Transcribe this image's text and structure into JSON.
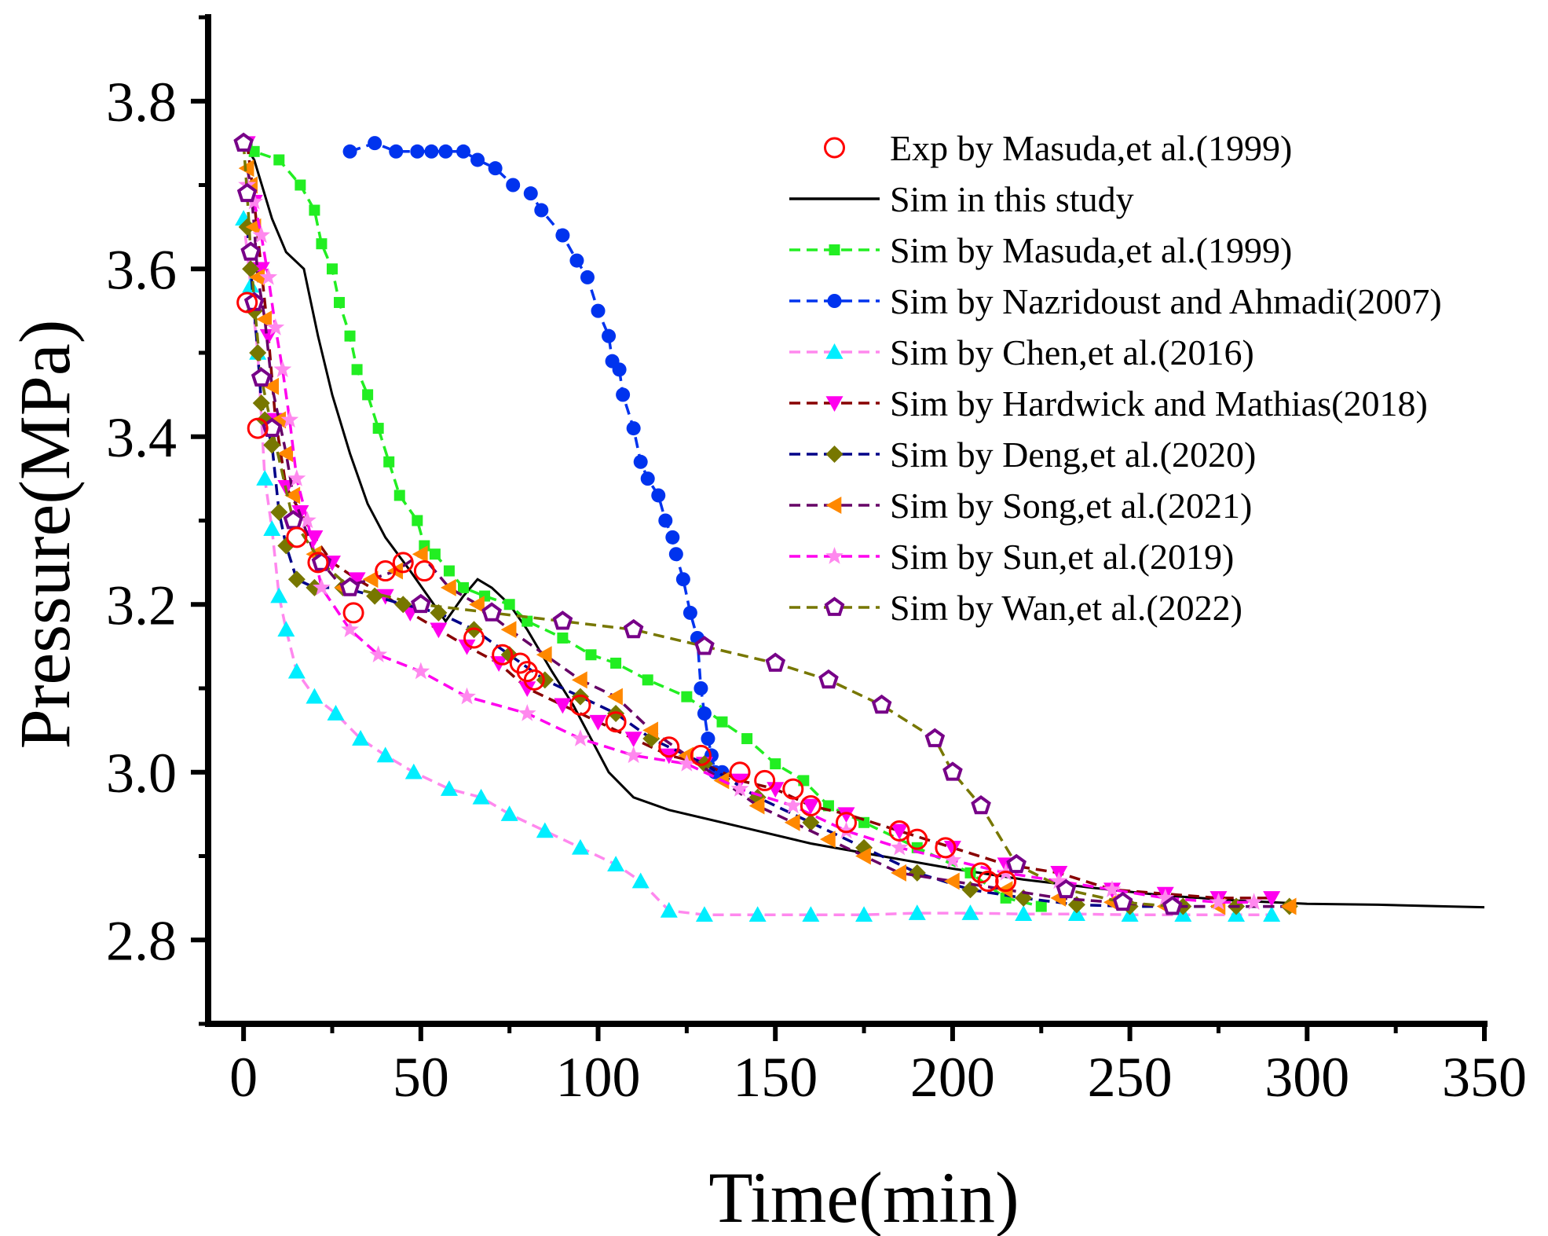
{
  "chart_data": {
    "type": "line",
    "xlabel": "Time(min)",
    "ylabel": "Pressure(MPa)",
    "xlim": [
      -10,
      350
    ],
    "ylim": [
      2.7,
      3.9
    ],
    "xticks": [
      0,
      50,
      100,
      150,
      200,
      250,
      300,
      350
    ],
    "xtick_labels": [
      "0",
      "50",
      "100",
      "150",
      "200",
      "250",
      "300",
      "350"
    ],
    "yticks": [
      2.8,
      3.0,
      3.2,
      3.4,
      3.6,
      3.8
    ],
    "ytick_labels": [
      "2.8",
      "3.0",
      "3.2",
      "3.4",
      "3.6",
      "3.8"
    ],
    "grid": false,
    "legend_position": "top-right",
    "series": [
      {
        "name": "Exp by Masuda,et al.(1999)",
        "color": "#ff0000",
        "line": "none",
        "marker": "circle-open",
        "x": [
          1,
          4,
          15,
          21,
          31,
          40,
          45,
          51,
          65,
          73,
          78,
          80,
          82,
          95,
          105,
          120,
          129,
          140,
          147,
          155,
          160,
          170,
          185,
          190,
          198,
          208,
          210,
          215
        ],
        "y": [
          3.56,
          3.41,
          3.28,
          3.25,
          3.19,
          3.24,
          3.25,
          3.24,
          3.16,
          3.14,
          3.13,
          3.12,
          3.11,
          3.08,
          3.06,
          3.03,
          3.02,
          3.0,
          2.99,
          2.98,
          2.96,
          2.94,
          2.93,
          2.92,
          2.91,
          2.88,
          2.87,
          2.87
        ]
      },
      {
        "name": "Sim in this study",
        "color": "#000000",
        "line": "solid",
        "marker": "none",
        "x": [
          0,
          3,
          8,
          12,
          17,
          21,
          25,
          30,
          35,
          40,
          47,
          52,
          57,
          62,
          66,
          70,
          75,
          80,
          87,
          93,
          98,
          103,
          110,
          120,
          140,
          160,
          180,
          200,
          220,
          240,
          260,
          280,
          300,
          320,
          340,
          350
        ],
        "y": [
          3.75,
          3.73,
          3.66,
          3.62,
          3.6,
          3.52,
          3.45,
          3.38,
          3.32,
          3.28,
          3.24,
          3.21,
          3.18,
          3.21,
          3.23,
          3.22,
          3.2,
          3.17,
          3.12,
          3.08,
          3.04,
          3.0,
          2.97,
          2.955,
          2.935,
          2.915,
          2.9,
          2.885,
          2.872,
          2.862,
          2.853,
          2.847,
          2.843,
          2.842,
          2.84,
          2.839
        ]
      },
      {
        "name": "Sim by Masuda,et al.(1999)",
        "color": "#22ee22",
        "line": "dash",
        "marker": "square",
        "x": [
          1,
          3,
          10,
          16,
          20,
          22,
          25,
          27,
          30,
          32,
          35,
          38,
          41,
          44,
          49,
          51,
          54,
          58,
          62,
          68,
          75,
          80,
          90,
          98,
          105,
          114,
          125,
          135,
          142,
          150,
          158,
          165,
          175,
          190,
          205,
          215,
          225
        ],
        "y": [
          3.75,
          3.74,
          3.73,
          3.7,
          3.67,
          3.63,
          3.6,
          3.56,
          3.52,
          3.48,
          3.45,
          3.41,
          3.37,
          3.33,
          3.3,
          3.27,
          3.26,
          3.24,
          3.22,
          3.21,
          3.2,
          3.18,
          3.16,
          3.14,
          3.13,
          3.11,
          3.09,
          3.06,
          3.04,
          3.01,
          2.99,
          2.96,
          2.94,
          2.91,
          2.88,
          2.85,
          2.84
        ]
      },
      {
        "name": "Sim by Nazridoust and Ahmadi(2007)",
        "color": "#0033ee",
        "line": "dash",
        "marker": "circle",
        "x": [
          30,
          37,
          43,
          49,
          53,
          57,
          62,
          66,
          71,
          76,
          81,
          84,
          90,
          94,
          97,
          100,
          103,
          104,
          106,
          107,
          110,
          112,
          114,
          117,
          119,
          121,
          122,
          124,
          126,
          128,
          129,
          130,
          131,
          132,
          133,
          135
        ],
        "y": [
          3.74,
          3.75,
          3.74,
          3.74,
          3.74,
          3.74,
          3.74,
          3.73,
          3.72,
          3.7,
          3.69,
          3.67,
          3.64,
          3.61,
          3.59,
          3.55,
          3.52,
          3.49,
          3.48,
          3.45,
          3.41,
          3.37,
          3.35,
          3.33,
          3.3,
          3.28,
          3.26,
          3.23,
          3.19,
          3.16,
          3.1,
          3.07,
          3.04,
          3.02,
          3.0,
          3.0
        ]
      },
      {
        "name": "Sim by Chen,et al.(2016)",
        "color": "#00eeff",
        "line": "dash",
        "line_color": "#ff88ee",
        "marker": "triangle-up",
        "x": [
          0,
          2,
          4,
          6,
          8,
          10,
          12,
          15,
          20,
          26,
          33,
          40,
          48,
          58,
          67,
          75,
          85,
          95,
          105,
          112,
          120,
          130,
          145,
          160,
          175,
          190,
          205,
          220,
          235,
          250,
          265,
          280,
          290
        ],
        "y": [
          3.66,
          3.58,
          3.5,
          3.35,
          3.29,
          3.21,
          3.17,
          3.12,
          3.09,
          3.07,
          3.04,
          3.02,
          3.0,
          2.98,
          2.97,
          2.95,
          2.93,
          2.91,
          2.89,
          2.87,
          2.835,
          2.83,
          2.83,
          2.83,
          2.83,
          2.832,
          2.832,
          2.831,
          2.831,
          2.83,
          2.83,
          2.83,
          2.83
        ]
      },
      {
        "name": "Sim by Hardwick and Mathias(2018)",
        "color": "#ff00ee",
        "line": "dash",
        "line_color": "#880000",
        "marker": "triangle-down",
        "x": [
          1,
          3,
          5,
          7,
          9,
          12,
          16,
          20,
          25,
          32,
          40,
          47,
          55,
          63,
          72,
          80,
          90,
          100,
          110,
          120,
          130,
          140,
          150,
          160,
          170,
          185,
          200,
          215,
          230,
          245,
          260,
          275,
          290
        ],
        "y": [
          3.75,
          3.68,
          3.6,
          3.52,
          3.42,
          3.34,
          3.31,
          3.28,
          3.25,
          3.23,
          3.21,
          3.19,
          3.17,
          3.15,
          3.13,
          3.1,
          3.08,
          3.06,
          3.04,
          3.02,
          3.01,
          2.99,
          2.98,
          2.96,
          2.95,
          2.93,
          2.91,
          2.89,
          2.88,
          2.86,
          2.855,
          2.85,
          2.85
        ]
      },
      {
        "name": "Sim by Deng,et al.(2020)",
        "color": "#777700",
        "line": "dash",
        "line_color": "#000088",
        "marker": "diamond",
        "x": [
          1,
          2,
          3,
          4,
          5,
          6,
          8,
          10,
          12,
          15,
          20,
          28,
          37,
          45,
          55,
          65,
          75,
          85,
          95,
          105,
          115,
          130,
          145,
          160,
          175,
          190,
          205,
          220,
          235,
          250,
          265,
          280,
          295
        ],
        "y": [
          3.65,
          3.6,
          3.55,
          3.5,
          3.44,
          3.42,
          3.39,
          3.31,
          3.27,
          3.23,
          3.22,
          3.22,
          3.21,
          3.2,
          3.19,
          3.17,
          3.14,
          3.11,
          3.09,
          3.07,
          3.04,
          3.01,
          2.97,
          2.94,
          2.91,
          2.88,
          2.86,
          2.85,
          2.842,
          2.84,
          2.84,
          2.84,
          2.84
        ]
      },
      {
        "name": "Sim by Song,et al.(2021)",
        "color": "#ff8800",
        "line": "dash",
        "line_color": "#660066",
        "marker": "triangle-left",
        "x": [
          1,
          2,
          3,
          4,
          6,
          8,
          10,
          12,
          14,
          20,
          28,
          36,
          43,
          50,
          58,
          66,
          75,
          85,
          95,
          105,
          115,
          125,
          135,
          145,
          155,
          165,
          175,
          185,
          200,
          215,
          230,
          245,
          260,
          275,
          295
        ],
        "y": [
          3.72,
          3.7,
          3.65,
          3.59,
          3.54,
          3.46,
          3.42,
          3.38,
          3.33,
          3.26,
          3.22,
          3.23,
          3.24,
          3.26,
          3.22,
          3.2,
          3.17,
          3.14,
          3.11,
          3.09,
          3.05,
          3.02,
          2.99,
          2.96,
          2.94,
          2.92,
          2.9,
          2.88,
          2.87,
          2.86,
          2.85,
          2.845,
          2.84,
          2.84,
          2.84
        ]
      },
      {
        "name": "Sim by Sun,et al.(2019)",
        "color": "#ff88ee",
        "line": "dash",
        "line_color": "#ff00ee",
        "marker": "star",
        "x": [
          1,
          3,
          5,
          7,
          9,
          11,
          13,
          15,
          18,
          22,
          30,
          38,
          50,
          63,
          80,
          95,
          110,
          125,
          140,
          155,
          170,
          185,
          200,
          215,
          230,
          245,
          260,
          275,
          285
        ],
        "y": [
          3.7,
          3.68,
          3.64,
          3.59,
          3.53,
          3.48,
          3.42,
          3.35,
          3.3,
          3.22,
          3.17,
          3.14,
          3.12,
          3.09,
          3.07,
          3.04,
          3.02,
          3.01,
          2.98,
          2.96,
          2.93,
          2.91,
          2.895,
          2.88,
          2.87,
          2.86,
          2.85,
          2.845,
          2.845
        ]
      },
      {
        "name": "Sim by Wan,et al.(2022)",
        "color": "#770088",
        "line": "dash",
        "line_color": "#777700",
        "marker": "pentagon",
        "x": [
          0,
          1,
          2,
          3,
          5,
          8,
          14,
          22,
          30,
          50,
          70,
          90,
          110,
          130,
          150,
          165,
          180,
          195,
          200,
          208,
          218,
          232,
          248,
          262
        ],
        "y": [
          3.75,
          3.69,
          3.62,
          3.56,
          3.47,
          3.41,
          3.3,
          3.25,
          3.22,
          3.2,
          3.19,
          3.18,
          3.17,
          3.15,
          3.13,
          3.11,
          3.08,
          3.04,
          3.0,
          2.96,
          2.89,
          2.86,
          2.845,
          2.84
        ]
      }
    ]
  }
}
